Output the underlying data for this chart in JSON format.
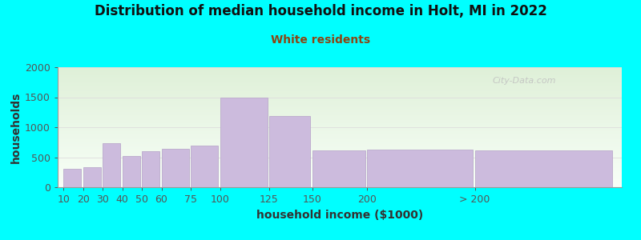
{
  "title": "Distribution of median household income in Holt, MI in 2022",
  "subtitle": "White residents",
  "xlabel": "household income ($1000)",
  "ylabel": "households",
  "background_color": "#00FFFF",
  "plot_bg_gradient_top": "#dff0d8",
  "plot_bg_gradient_bottom": "#f8fff8",
  "bar_color": "#ccbbdd",
  "bar_edge_color": "#bbaacc",
  "categories": [
    "10",
    "20",
    "30",
    "40",
    "50",
    "60",
    "75",
    "100",
    "125",
    "150",
    "200",
    "> 200"
  ],
  "values": [
    305,
    340,
    740,
    525,
    600,
    640,
    700,
    1500,
    1185,
    610,
    625,
    620
  ],
  "x_lefts": [
    10,
    20,
    30,
    40,
    50,
    60,
    75,
    90,
    115,
    137,
    165,
    220
  ],
  "x_widths": [
    9,
    9,
    9,
    9,
    9,
    14,
    14,
    24,
    21,
    27,
    54,
    70
  ],
  "xlim": [
    7,
    295
  ],
  "ylim": [
    0,
    2000
  ],
  "yticks": [
    0,
    500,
    1000,
    1500,
    2000
  ],
  "title_fontsize": 12,
  "subtitle_fontsize": 10,
  "axis_label_fontsize": 10,
  "tick_fontsize": 9,
  "watermark": "City-Data.com",
  "title_color": "#111111",
  "subtitle_color": "#8B4513",
  "axis_label_color": "#333333",
  "tick_color": "#555555",
  "watermark_color": "#c0c0c0",
  "grid_color": "#dddddd"
}
